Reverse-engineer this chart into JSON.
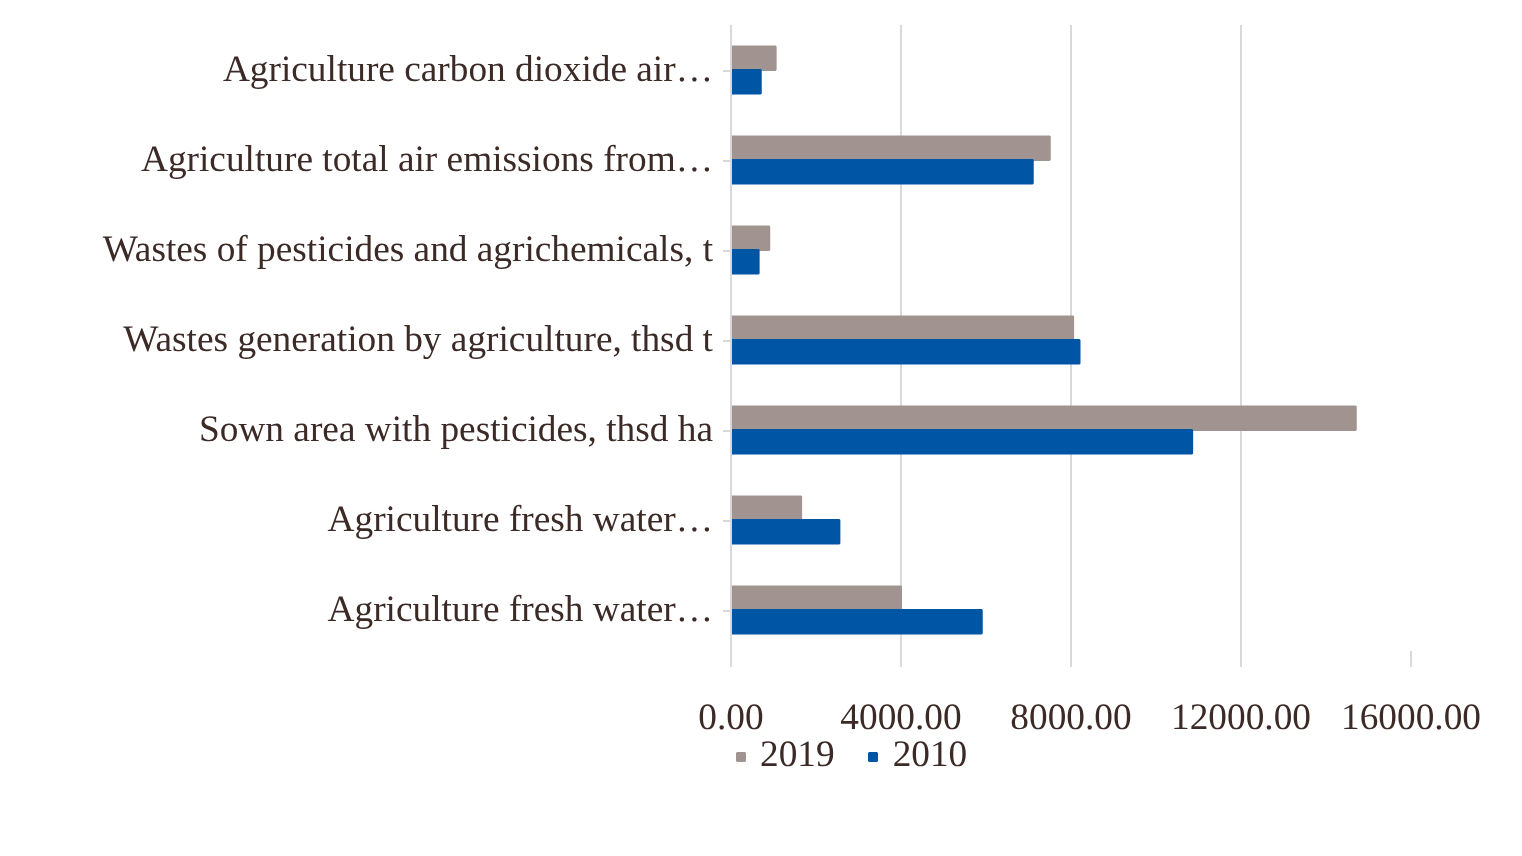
{
  "chart_data": {
    "type": "bar",
    "orientation": "horizontal",
    "categories": [
      "Agriculture carbon dioxide air…",
      "Agriculture total air emissions from…",
      "Wastes of pesticides and agrichemicals, t",
      "Wastes generation by agriculture, thsd t",
      "Sown area with pesticides, thsd ha",
      "Agriculture fresh water…",
      "Agriculture fresh water…"
    ],
    "series": [
      {
        "name": "2019",
        "color": "#a09390",
        "values": [
          1050,
          7500,
          900,
          8050,
          14700,
          1650,
          4000
        ]
      },
      {
        "name": "2010",
        "color": "#0055a5",
        "values": [
          700,
          7100,
          650,
          8200,
          10850,
          2550,
          5900
        ]
      }
    ],
    "xlim": [
      0,
      16000
    ],
    "xticks": [
      {
        "value": 0,
        "label": "0.00"
      },
      {
        "value": 4000,
        "label": "4000.00"
      },
      {
        "value": 8000,
        "label": "8000.00"
      },
      {
        "value": 12000,
        "label": "12000.00"
      },
      {
        "value": 16000,
        "label": "16000.00"
      }
    ],
    "grid": "x",
    "legend": "bottom"
  }
}
